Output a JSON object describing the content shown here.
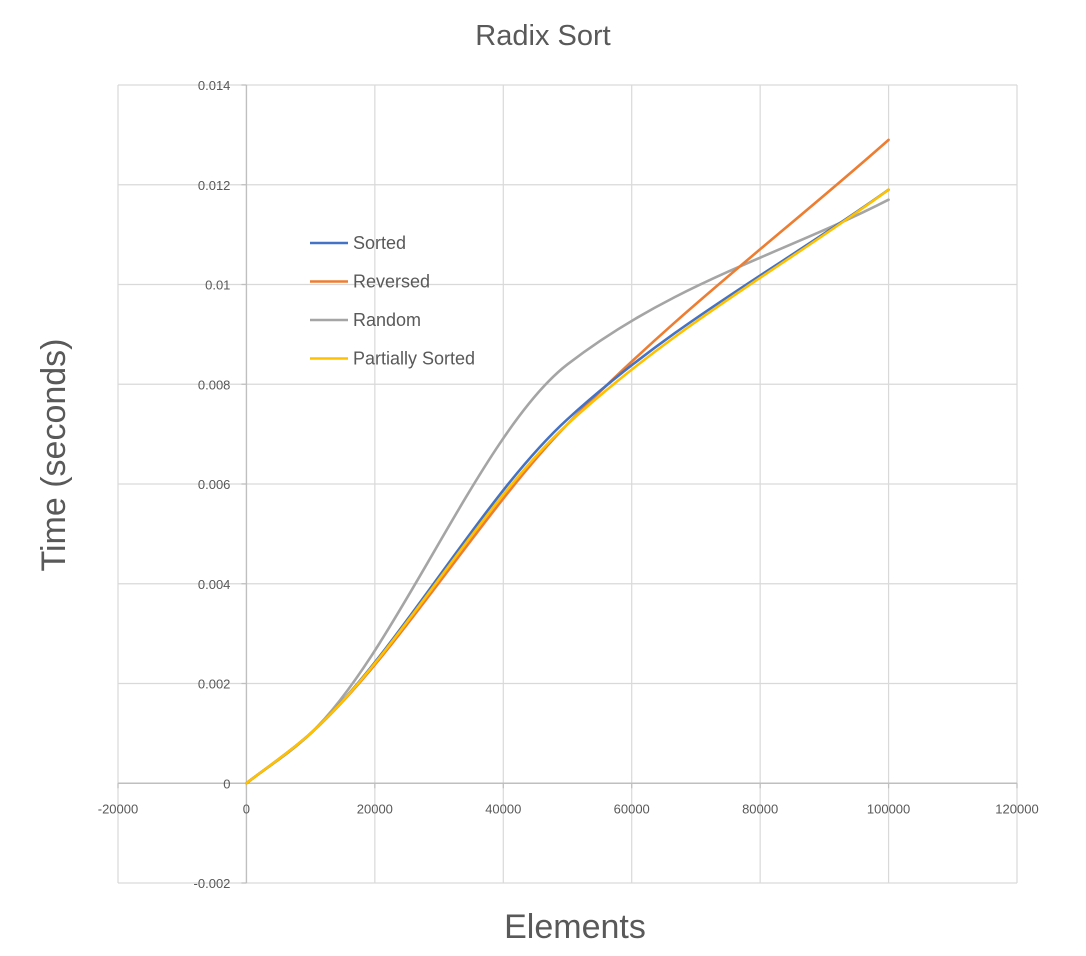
{
  "chart_data": {
    "type": "line",
    "title": "Radix Sort",
    "xlabel": "Elements",
    "ylabel": "Time (seconds)",
    "xlim": [
      -20000,
      120000
    ],
    "ylim": [
      -0.002,
      0.014
    ],
    "x_ticks": [
      -20000,
      0,
      20000,
      40000,
      60000,
      80000,
      100000,
      120000
    ],
    "x_tick_labels": [
      "-20000",
      "0",
      "20000",
      "40000",
      "60000",
      "80000",
      "100000",
      "120000"
    ],
    "y_ticks": [
      -0.002,
      0,
      0.002,
      0.004,
      0.006,
      0.008,
      0.01,
      0.012,
      0.014
    ],
    "y_tick_labels": [
      "-0.002",
      "0",
      "0.002",
      "0.004",
      "0.006",
      "0.008",
      "0.01",
      "0.012",
      "0.014"
    ],
    "grid": true,
    "legend_position": "upper-left inside plot",
    "x": [
      0,
      10000,
      50000,
      100000
    ],
    "series": [
      {
        "name": "Sorted",
        "color": "#4472C4",
        "values": [
          0,
          0.001,
          0.0073,
          0.0119
        ]
      },
      {
        "name": "Reversed",
        "color": "#ED7D31",
        "values": [
          0,
          0.001,
          0.0072,
          0.0129
        ]
      },
      {
        "name": "Random",
        "color": "#A5A5A5",
        "values": [
          0,
          0.001,
          0.0084,
          0.0117
        ]
      },
      {
        "name": "Partially Sorted",
        "color": "#FFC000",
        "values": [
          0,
          0.001,
          0.0072,
          0.0119
        ]
      }
    ]
  }
}
